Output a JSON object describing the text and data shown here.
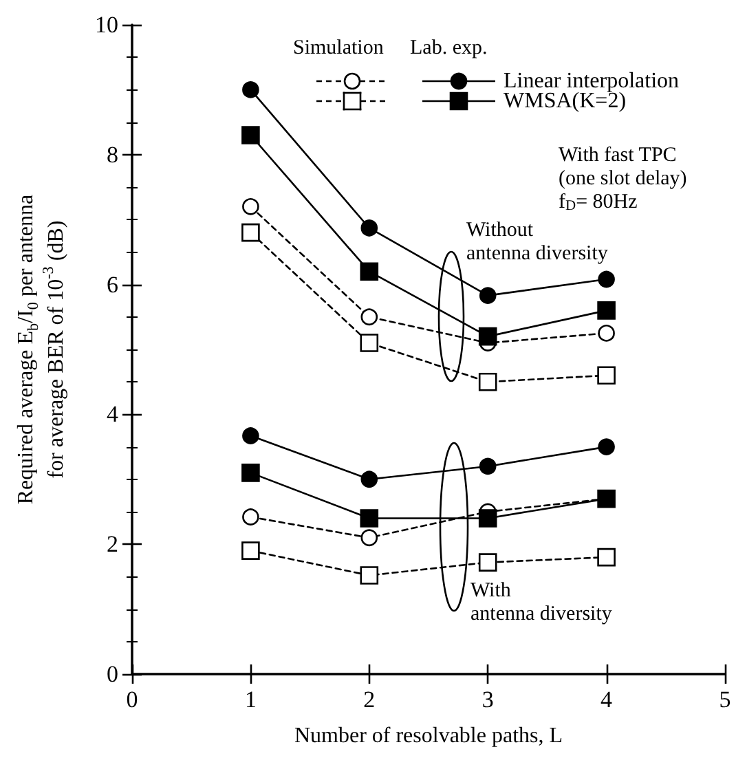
{
  "chart_data": {
    "type": "line",
    "xlabel": "Number of resolvable paths, L",
    "ylabel": "Required average E$_{b}$/I$_{0}$ per antenna\nfor average BER of 10$^{-3}$ (dB)",
    "x": [
      1,
      2,
      3,
      4
    ],
    "xlim": [
      0,
      5
    ],
    "xticks": [
      0,
      1,
      2,
      3,
      4,
      5
    ],
    "ylim": [
      0,
      10
    ],
    "yticks": [
      0,
      2,
      4,
      6,
      8,
      10
    ],
    "series": [
      {
        "name": "Linear interpolation",
        "color": "#000000",
        "marker": "circle",
        "line_style": "solid",
        "values": [
          9.0,
          6.87,
          5.83,
          6.08
        ]
      },
      {
        "name": "WMSA(K=2)",
        "color": "#000000",
        "marker": "square",
        "line_style": "solid",
        "values": [
          8.3,
          6.2,
          5.2,
          5.6
        ]
      },
      {
        "color": "#000000",
        "marker": "circle",
        "line_style": "dashed",
        "values": [
          7.2,
          5.5,
          5.1,
          5.25
        ]
      },
      {
        "color": "#000000",
        "marker": "square",
        "line_style": "dashed",
        "values": [
          6.8,
          5.1,
          4.5,
          4.6
        ]
      },
      {
        "color": "#000000",
        "marker": "circle",
        "line_style": "solid",
        "values": [
          3.67,
          3.0,
          3.2,
          3.5
        ]
      },
      {
        "color": "#000000",
        "marker": "square",
        "line_style": "solid",
        "values": [
          3.1,
          2.4,
          2.4,
          2.7
        ]
      },
      {
        "color": "#000000",
        "marker": "circle",
        "line_style": "dashed",
        "values": [
          2.42,
          2.1,
          2.5,
          2.7
        ]
      },
      {
        "color": "#000000",
        "marker": "square",
        "line_style": "dashed",
        "values": [
          1.9,
          1.52,
          1.72,
          1.8
        ]
      }
    ],
    "legend": "top right",
    "grid": false,
    "annotations": [
      "Simulation",
      "Lab. exp.",
      "With fast TPC\n(one slot delay)\nf$_{D}$= 80Hz",
      "Without\nantenna diversity",
      "With\nantenna diversity"
    ]
  }
}
